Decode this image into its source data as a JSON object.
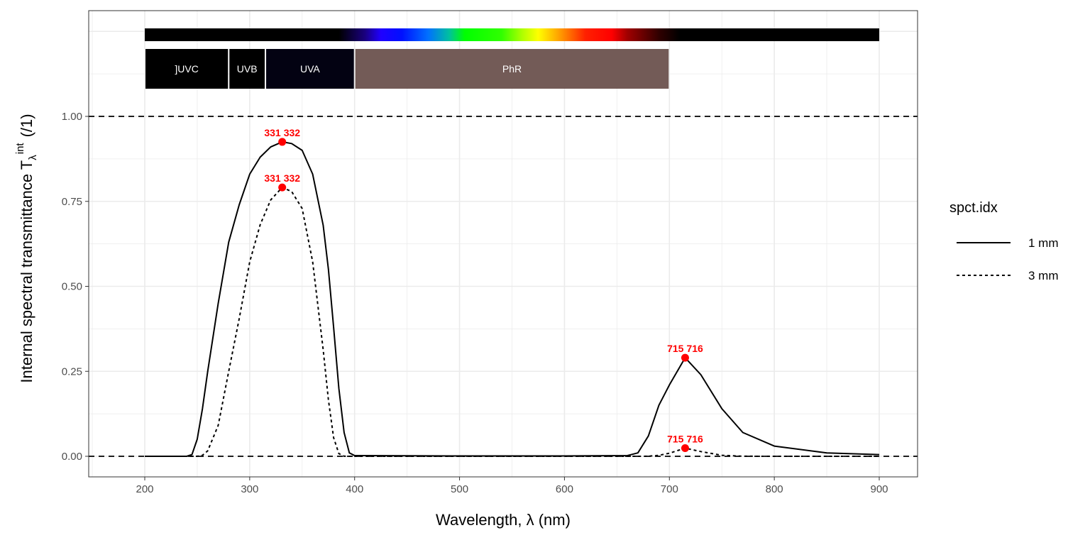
{
  "chart_data": {
    "type": "line",
    "xlabel": "Wavelength, λ (nm)",
    "ylabel_main": "Internal  spectral  transmittance  T",
    "ylabel_sub": "λ",
    "ylabel_sup": "int",
    "ylabel_unit": "(/1)",
    "xlim": [
      147,
      937
    ],
    "ylim": [
      -0.06,
      1.31
    ],
    "x_ticks": [
      200,
      300,
      400,
      500,
      600,
      700,
      800,
      900
    ],
    "y_ticks": [
      "0.00",
      "0.25",
      "0.50",
      "0.75",
      "1.00"
    ],
    "grid": true,
    "hlines": [
      0,
      1
    ],
    "legend": {
      "title": "spct.idx",
      "placement": "right"
    },
    "wavebands": [
      {
        "label": "]UVC",
        "from": 200,
        "to": 280,
        "color": "#000000"
      },
      {
        "label": "UVB",
        "from": 280,
        "to": 315,
        "color": "#000000"
      },
      {
        "label": "UVA",
        "from": 315,
        "to": 400,
        "color": "#030212"
      },
      {
        "label": "PhR",
        "from": 400,
        "to": 700,
        "color": "#735b57"
      }
    ],
    "x": [
      200,
      240,
      245,
      250,
      255,
      260,
      270,
      280,
      290,
      300,
      310,
      320,
      331,
      340,
      350,
      360,
      370,
      375,
      380,
      385,
      390,
      395,
      400,
      500,
      600,
      660,
      670,
      680,
      690,
      700,
      715,
      730,
      750,
      770,
      800,
      850,
      900
    ],
    "series": [
      {
        "name": "1 mm",
        "linestyle": "solid",
        "values": [
          0,
          0,
          0.005,
          0.05,
          0.14,
          0.25,
          0.45,
          0.63,
          0.74,
          0.83,
          0.88,
          0.91,
          0.925,
          0.92,
          0.9,
          0.83,
          0.68,
          0.55,
          0.38,
          0.2,
          0.07,
          0.01,
          0.002,
          0.001,
          0.001,
          0.002,
          0.01,
          0.06,
          0.15,
          0.21,
          0.29,
          0.24,
          0.14,
          0.07,
          0.03,
          0.01,
          0.005
        ]
      },
      {
        "name": "3 mm",
        "linestyle": "dashed",
        "values": [
          0,
          0,
          0,
          0,
          0.003,
          0.016,
          0.091,
          0.25,
          0.405,
          0.572,
          0.681,
          0.754,
          0.791,
          0.779,
          0.729,
          0.572,
          0.314,
          0.166,
          0.055,
          0.008,
          0.0003,
          0,
          0,
          0,
          0,
          0,
          0,
          0.0002,
          0.003,
          0.009,
          0.024,
          0.014,
          0.003,
          0.0003,
          0,
          0,
          0
        ]
      }
    ],
    "peaks": [
      {
        "x": 331,
        "y": 0.925,
        "labels": [
          "331",
          "332"
        ]
      },
      {
        "x": 331,
        "y": 0.791,
        "labels": [
          "331",
          "332"
        ]
      },
      {
        "x": 715,
        "y": 0.29,
        "labels": [
          "715",
          "716"
        ]
      },
      {
        "x": 715,
        "y": 0.024,
        "labels": [
          "715",
          "716"
        ]
      }
    ],
    "peak_color": "#ff0000"
  }
}
